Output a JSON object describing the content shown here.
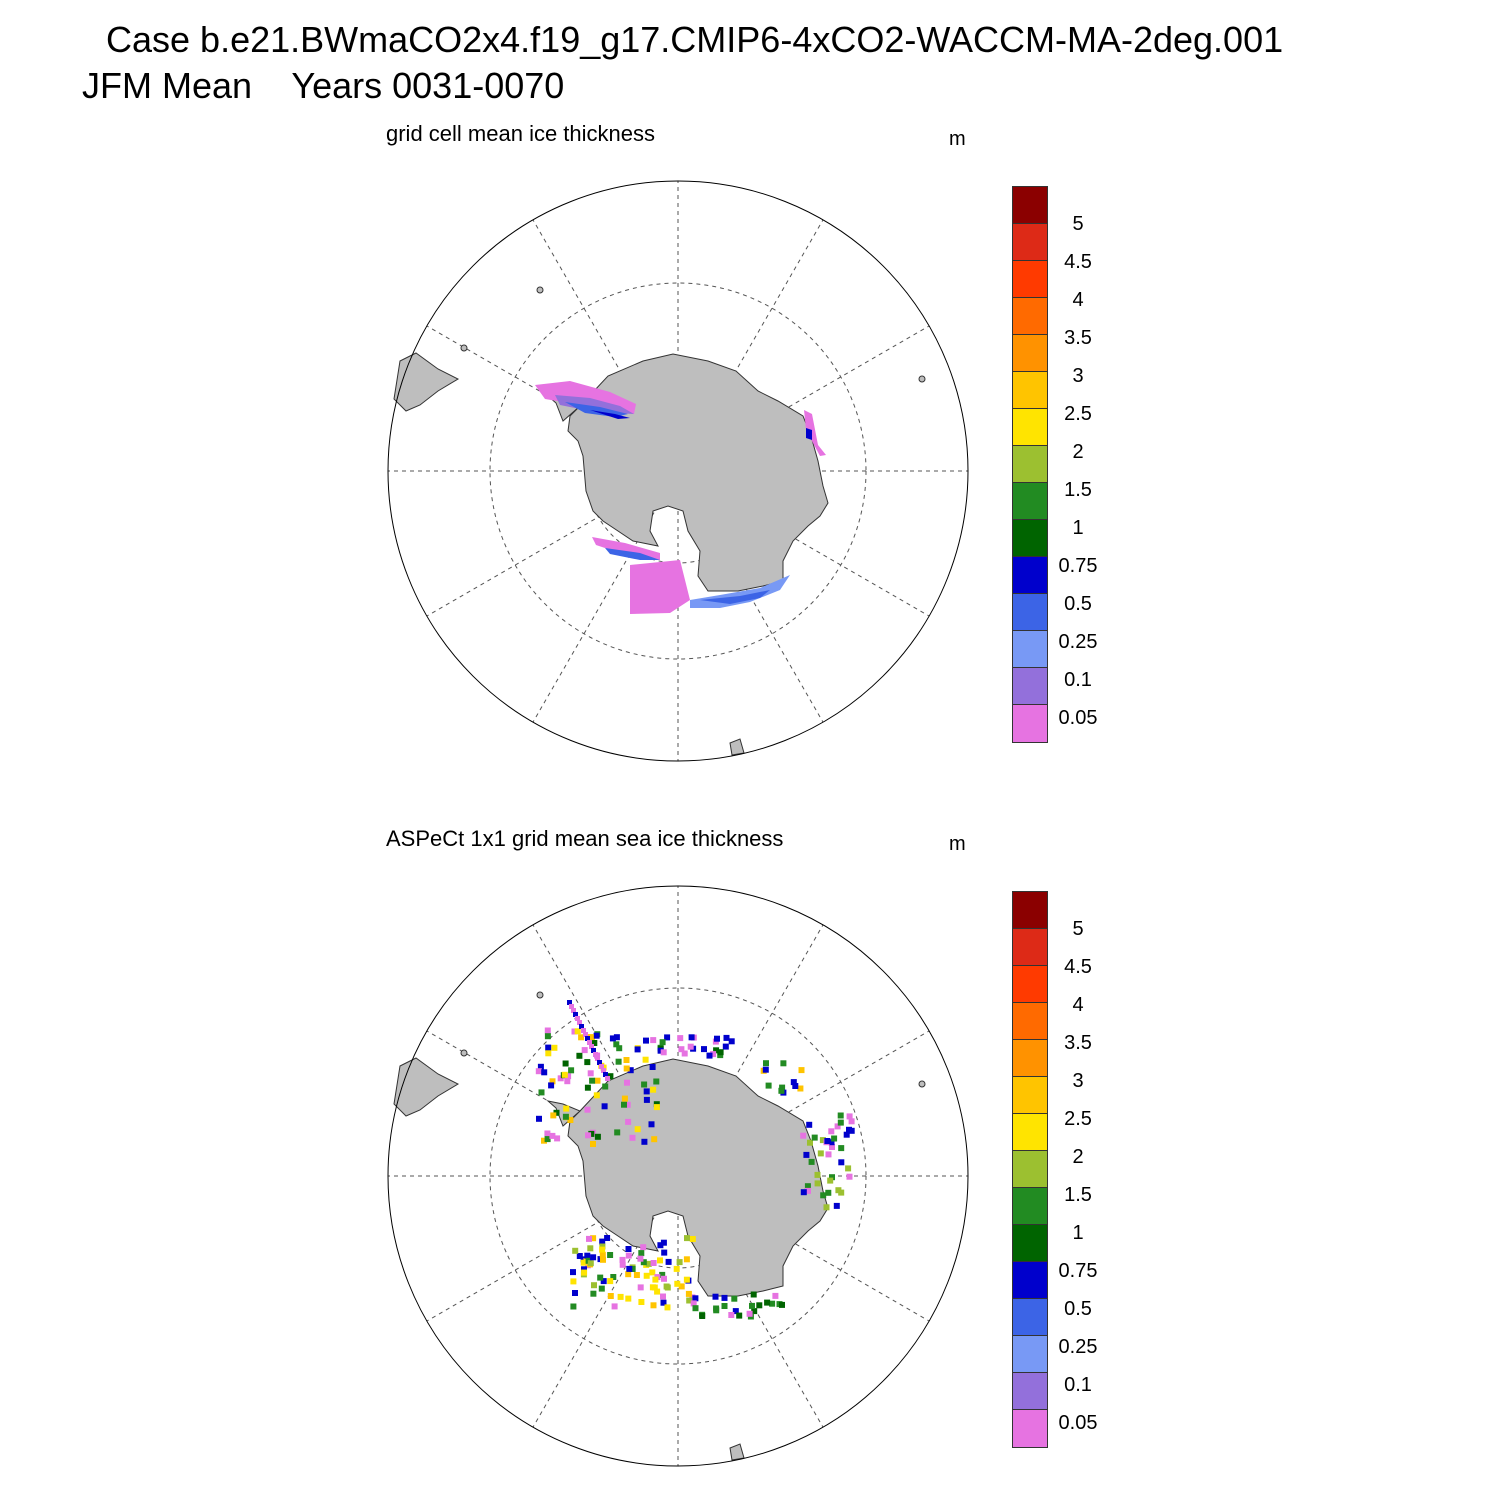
{
  "header": {
    "line1": "Case b.e21.BWmaCO2x4.f19_g17.CMIP6-4xCO2-WACCM-MA-2deg.001",
    "line2": "JFM Mean    Years 0031-0070"
  },
  "panels": [
    {
      "title": "grid cell mean ice thickness",
      "units": "m"
    },
    {
      "title": "ASPeCt 1x1 grid mean sea ice thickness",
      "units": "m"
    }
  ],
  "colorbar": {
    "labels": [
      "5",
      "4.5",
      "4",
      "3.5",
      "3",
      "2.5",
      "2",
      "1.5",
      "1",
      "0.75",
      "0.5",
      "0.25",
      "0.1",
      "0.05"
    ],
    "colors": [
      "#8b0000",
      "#dd2a17",
      "#ff3a00",
      "#ff6a00",
      "#ff9200",
      "#ffc400",
      "#ffe400",
      "#9cc030",
      "#228b22",
      "#006400",
      "#0000cc",
      "#3c64e6",
      "#7899f5",
      "#9370db",
      "#e673e1"
    ]
  },
  "map": {
    "ocean_color": "#ffffff",
    "land_color": "#bebebe",
    "grid_style": "dashed",
    "projection": "south polar stereographic"
  }
}
